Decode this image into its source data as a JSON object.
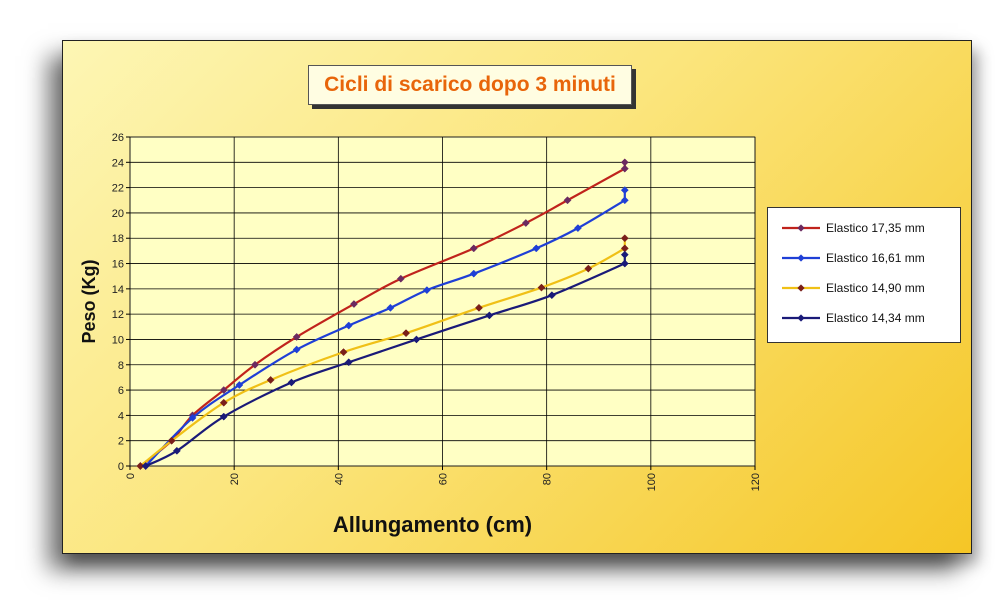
{
  "chart_data": {
    "type": "line",
    "title": "Cicli di scarico dopo 3 minuti",
    "xlabel": "Allungamento (cm)",
    "ylabel": "Peso (Kg)",
    "xlim": [
      0,
      120
    ],
    "ylim": [
      0,
      26
    ],
    "xticks": [
      0,
      20,
      40,
      60,
      80,
      100,
      120
    ],
    "yticks": [
      0,
      2,
      4,
      6,
      8,
      10,
      12,
      14,
      16,
      18,
      20,
      22,
      24,
      26
    ],
    "grid": true,
    "legend_position": "right",
    "series": [
      {
        "name": "Elastico 17,35 mm",
        "color": "#c0231c",
        "marker_color": "#6b2a60",
        "points": [
          [
            2,
            0
          ],
          [
            8,
            2
          ],
          [
            12,
            4
          ],
          [
            18,
            6
          ],
          [
            24,
            8
          ],
          [
            32,
            10.2
          ],
          [
            43,
            12.8
          ],
          [
            52,
            14.8
          ],
          [
            66,
            17.2
          ],
          [
            76,
            19.2
          ],
          [
            84,
            21
          ],
          [
            95,
            23.5
          ]
        ],
        "end_points": [
          [
            95,
            24
          ]
        ]
      },
      {
        "name": "Elastico 16,61 mm",
        "color": "#1f3fd6",
        "marker_color": "#1f3fd6",
        "points": [
          [
            3,
            0
          ],
          [
            12,
            3.8
          ],
          [
            21,
            6.4
          ],
          [
            32,
            9.2
          ],
          [
            42,
            11.1
          ],
          [
            50,
            12.5
          ],
          [
            57,
            13.9
          ],
          [
            66,
            15.2
          ],
          [
            78,
            17.2
          ],
          [
            86,
            18.8
          ],
          [
            95,
            21
          ]
        ],
        "end_points": [
          [
            95,
            21.8
          ]
        ]
      },
      {
        "name": "Elastico 14,90 mm",
        "color": "#f0c016",
        "marker_color": "#7a1f1a",
        "points": [
          [
            2,
            0
          ],
          [
            8,
            2
          ],
          [
            18,
            5
          ],
          [
            27,
            6.8
          ],
          [
            41,
            9
          ],
          [
            53,
            10.5
          ],
          [
            67,
            12.5
          ],
          [
            79,
            14.1
          ],
          [
            88,
            15.6
          ],
          [
            95,
            17.2
          ]
        ],
        "end_points": [
          [
            95,
            18
          ]
        ]
      },
      {
        "name": "Elastico 14,34 mm",
        "color": "#1a1a78",
        "marker_color": "#1a1a78",
        "points": [
          [
            3,
            0
          ],
          [
            9,
            1.2
          ],
          [
            18,
            3.9
          ],
          [
            31,
            6.6
          ],
          [
            42,
            8.2
          ],
          [
            55,
            10
          ],
          [
            69,
            11.9
          ],
          [
            81,
            13.5
          ],
          [
            95,
            16
          ]
        ],
        "end_points": [
          [
            95,
            16.7
          ]
        ]
      }
    ]
  }
}
